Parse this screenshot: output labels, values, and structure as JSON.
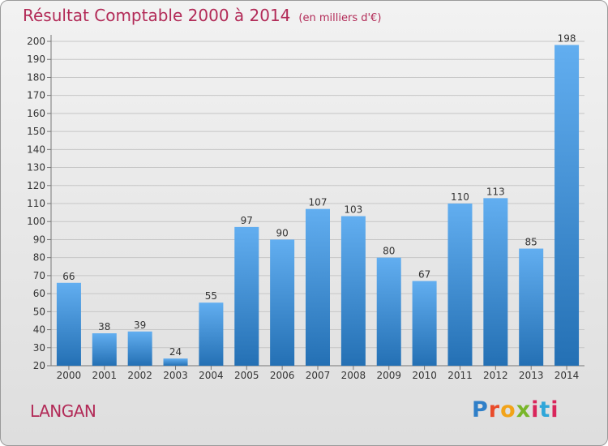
{
  "title": "Résultat Comptable 2000 à 2014",
  "unit_note": "(en milliers d'€)",
  "commune": "LANGAN",
  "logo_text": "Proxiti",
  "colors": {
    "bar_light": "#62aef0",
    "bar_dark": "#2470b4",
    "title": "#b22a57"
  },
  "chart_data": {
    "type": "bar",
    "title": "Résultat Comptable 2000 à 2014",
    "xlabel": "",
    "ylabel": "",
    "categories": [
      "2000",
      "2001",
      "2002",
      "2003",
      "2004",
      "2005",
      "2006",
      "2007",
      "2008",
      "2009",
      "2010",
      "2011",
      "2012",
      "2013",
      "2014"
    ],
    "values": [
      66,
      38,
      39,
      24,
      55,
      97,
      90,
      107,
      103,
      80,
      67,
      110,
      113,
      85,
      198
    ],
    "ylim": [
      20,
      200
    ],
    "yticks": [
      20,
      30,
      40,
      50,
      60,
      70,
      80,
      90,
      100,
      110,
      120,
      130,
      140,
      150,
      160,
      170,
      180,
      190,
      200
    ],
    "grid": true,
    "legend": "none"
  }
}
